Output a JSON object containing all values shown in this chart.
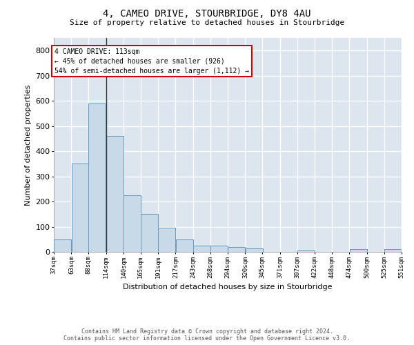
{
  "title": "4, CAMEO DRIVE, STOURBRIDGE, DY8 4AU",
  "subtitle": "Size of property relative to detached houses in Stourbridge",
  "xlabel": "Distribution of detached houses by size in Stourbridge",
  "ylabel": "Number of detached properties",
  "footer_line1": "Contains HM Land Registry data © Crown copyright and database right 2024.",
  "footer_line2": "Contains public sector information licensed under the Open Government Licence v3.0.",
  "annotation_title": "4 CAMEO DRIVE: 113sqm",
  "annotation_line1": "← 45% of detached houses are smaller (926)",
  "annotation_line2": "54% of semi-detached houses are larger (1,112) →",
  "property_size_bin": 2,
  "bar_color": "#c9d9e8",
  "bar_edge_color": "#6699bb",
  "vline_color": "#333333",
  "annotation_box_color": "#ffffff",
  "annotation_box_edge": "#cc0000",
  "background_color": "#dde6ef",
  "bins": [
    37,
    63,
    88,
    114,
    140,
    165,
    191,
    217,
    243,
    268,
    294,
    320,
    345,
    371,
    397,
    422,
    448,
    474,
    500,
    525,
    551
  ],
  "bin_labels": [
    "37sqm",
    "63sqm",
    "88sqm",
    "114sqm",
    "140sqm",
    "165sqm",
    "191sqm",
    "217sqm",
    "243sqm",
    "268sqm",
    "294sqm",
    "320sqm",
    "345sqm",
    "371sqm",
    "397sqm",
    "422sqm",
    "448sqm",
    "474sqm",
    "500sqm",
    "525sqm",
    "551sqm"
  ],
  "counts": [
    50,
    350,
    590,
    460,
    225,
    150,
    95,
    50,
    25,
    25,
    20,
    15,
    0,
    0,
    5,
    0,
    0,
    10,
    0,
    10,
    0
  ],
  "ylim": [
    0,
    850
  ],
  "yticks": [
    0,
    100,
    200,
    300,
    400,
    500,
    600,
    700,
    800
  ]
}
